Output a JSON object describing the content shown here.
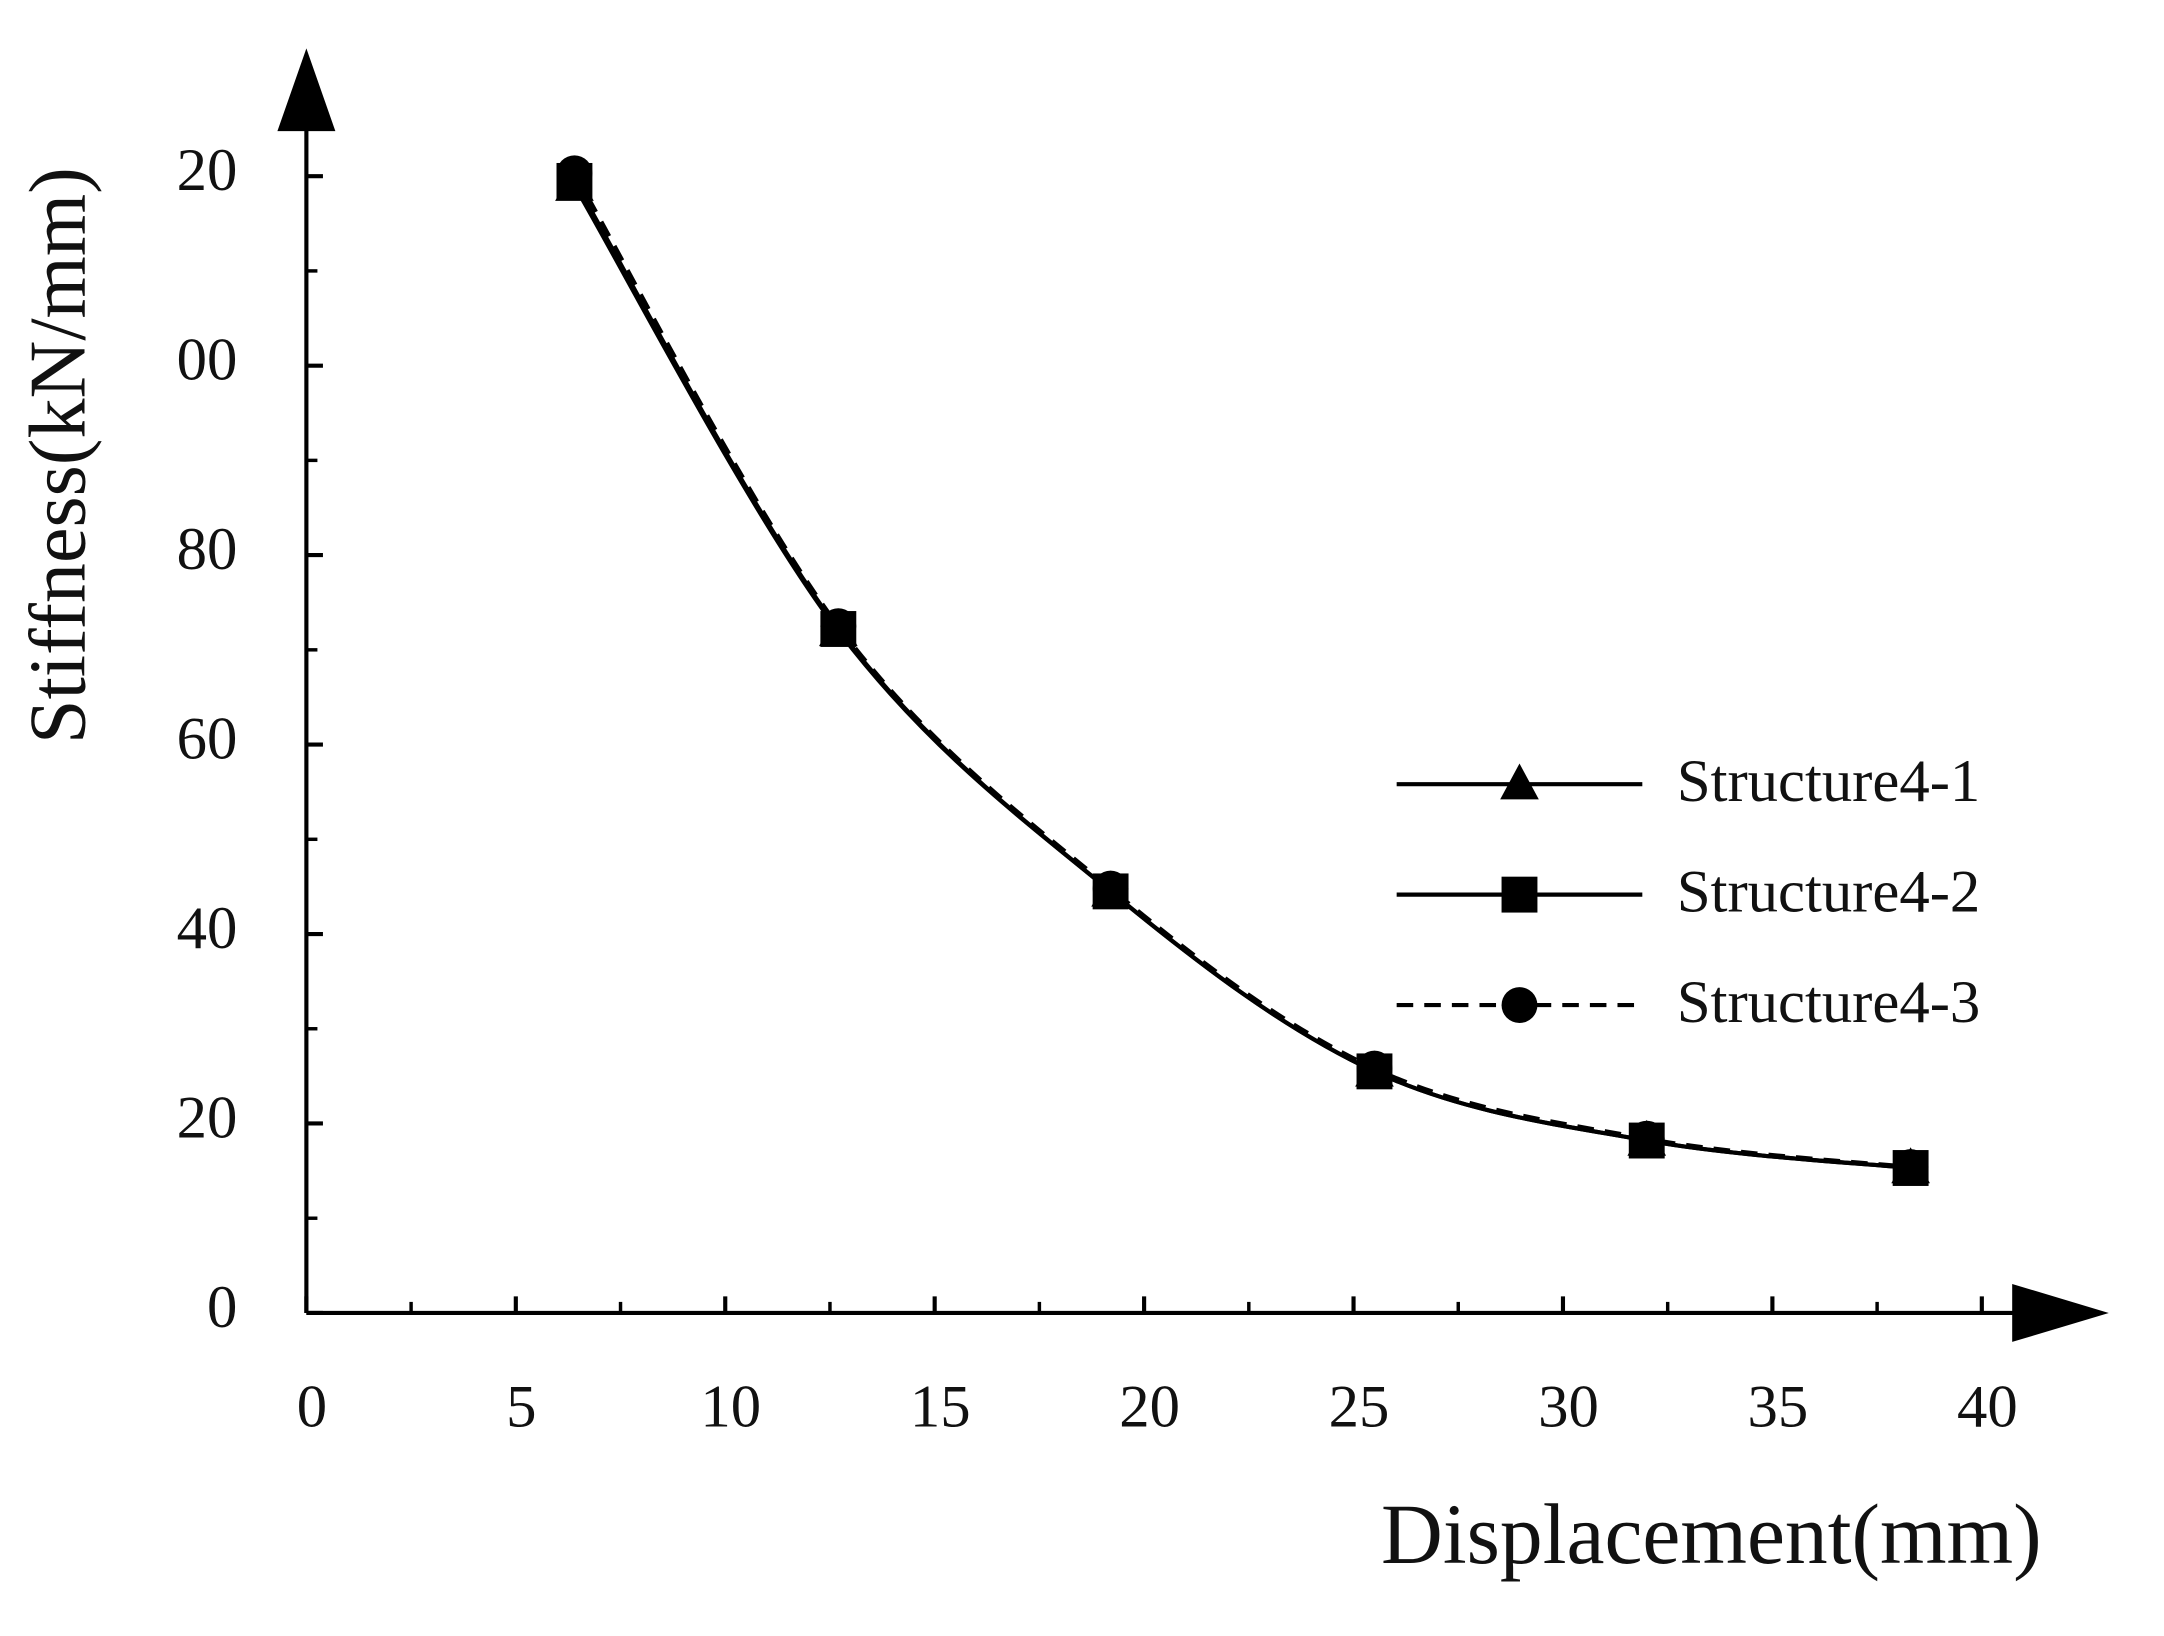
{
  "chart_data": {
    "type": "line",
    "x_label": "Displacement(mm)",
    "y_label": "Stiffness(kN/mm)",
    "xlim": [
      0,
      40
    ],
    "ylim": [
      0,
      130
    ],
    "xticks": [
      0,
      5,
      10,
      15,
      20,
      25,
      30,
      35,
      40
    ],
    "yticks": [
      0,
      20,
      40,
      60,
      80,
      {
        "value": 100,
        "label": "00"
      },
      {
        "value": 120,
        "label": "20"
      }
    ],
    "grid": false,
    "legend": "right",
    "series": [
      {
        "name": "Structure4-1",
        "color": "#000000",
        "marker": "triangle",
        "linestyle": "solid",
        "x": [
          6.4,
          12.7,
          19.2,
          25.5,
          32.0,
          38.3
        ],
        "values": [
          119.0,
          72.0,
          44.5,
          25.5,
          18.2,
          15.3
        ]
      },
      {
        "name": "Structure4-2",
        "color": "#000000",
        "marker": "square",
        "linestyle": "solid",
        "x": [
          6.4,
          12.7,
          19.2,
          25.5,
          32.0,
          38.3
        ],
        "values": [
          119.5,
          72.2,
          44.5,
          25.5,
          18.2,
          15.3
        ]
      },
      {
        "name": "Structure4-3",
        "color": "#000000",
        "marker": "circle",
        "linestyle": "dashed",
        "x": [
          6.4,
          12.7,
          19.2,
          25.5,
          32.0,
          38.3
        ],
        "values": [
          120.3,
          72.5,
          44.8,
          25.8,
          18.4,
          15.4
        ]
      }
    ]
  }
}
